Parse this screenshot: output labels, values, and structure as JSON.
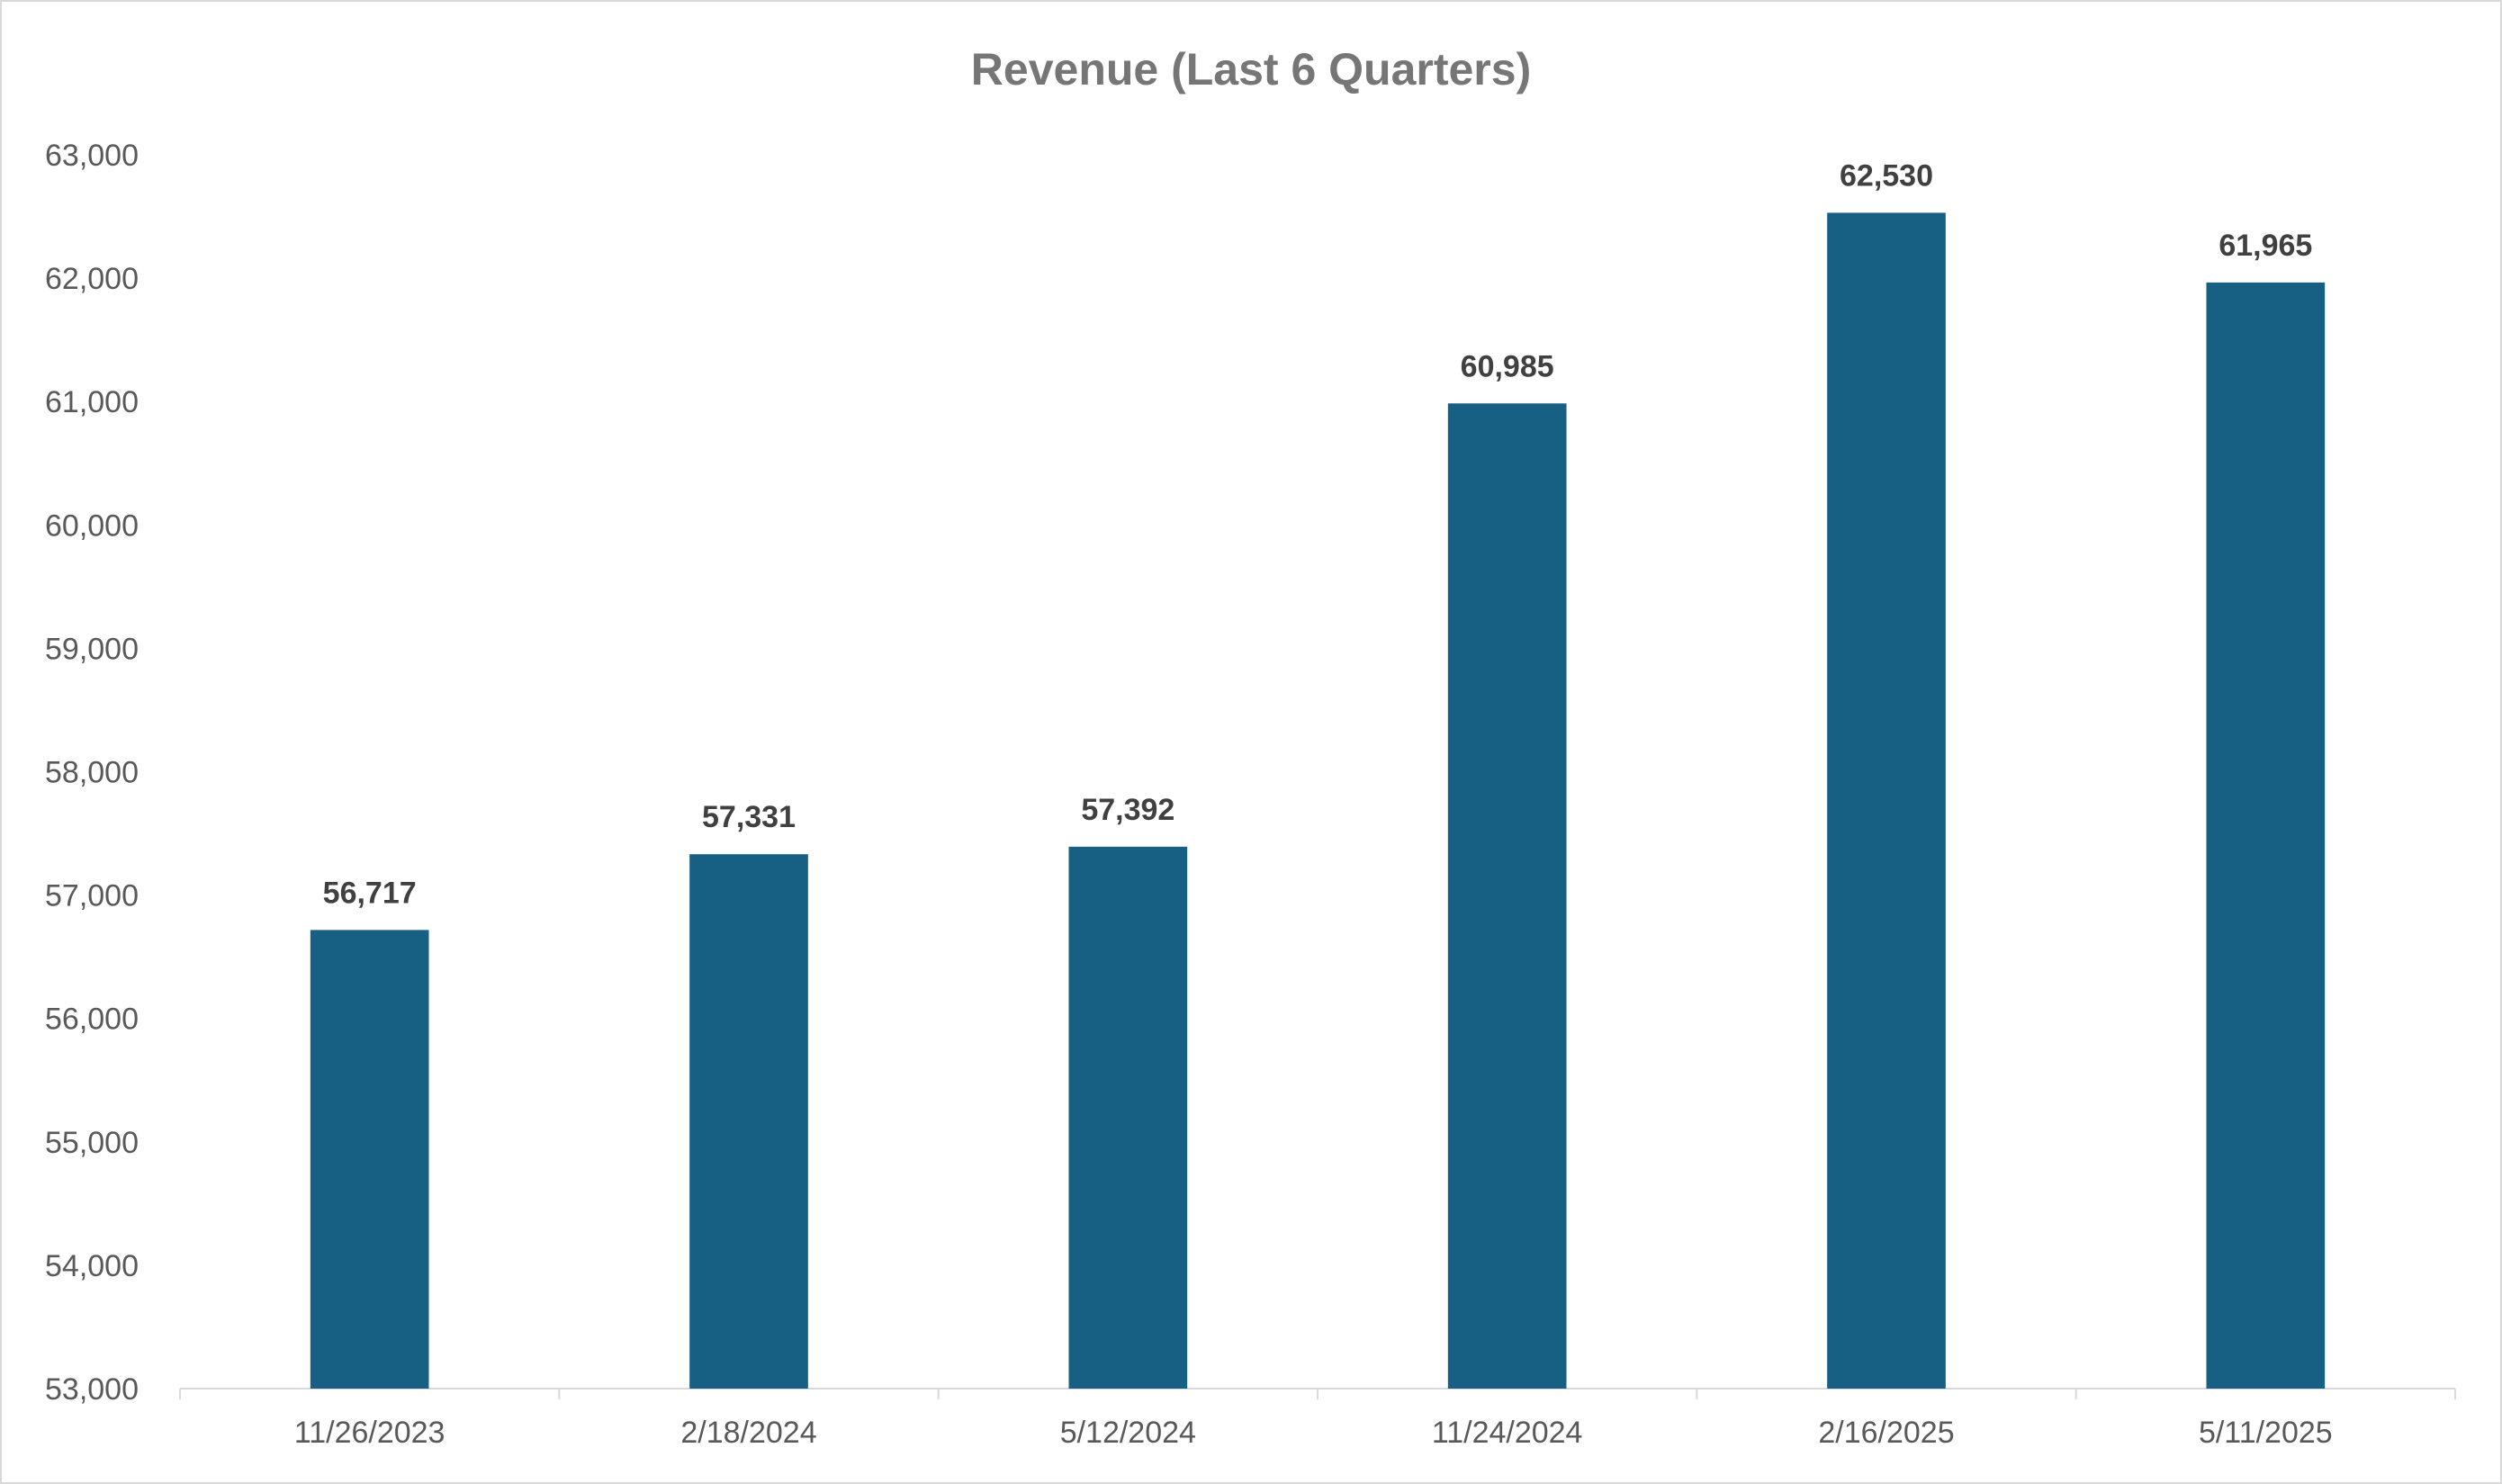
{
  "chart_data": {
    "type": "bar",
    "title": "Revenue (Last 6 Quarters)",
    "xlabel": "",
    "ylabel": "",
    "categories": [
      "11/26/2023",
      "2/18/2024",
      "5/12/2024",
      "11/24/2024",
      "2/16/2025",
      "5/11/2025"
    ],
    "values": [
      56717,
      57331,
      57392,
      60985,
      62530,
      61965
    ],
    "data_labels": [
      "56,717",
      "57,331",
      "57,392",
      "60,985",
      "62,530",
      "61,965"
    ],
    "ylim": [
      53000,
      63000
    ],
    "y_ticks": [
      53000,
      54000,
      55000,
      56000,
      57000,
      58000,
      59000,
      60000,
      61000,
      62000,
      63000
    ],
    "y_tick_labels": [
      "53,000",
      "54,000",
      "55,000",
      "56,000",
      "57,000",
      "58,000",
      "59,000",
      "60,000",
      "61,000",
      "62,000",
      "63,000"
    ],
    "grid": false,
    "legend": "none",
    "bar_color": "#175F83"
  }
}
